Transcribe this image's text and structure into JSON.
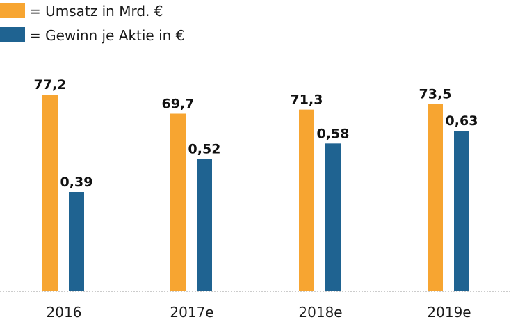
{
  "chart_data": {
    "type": "bar",
    "title": "",
    "xlabel": "",
    "ylabel": "",
    "categories": [
      "2016",
      "2017e",
      "2018e",
      "2019e"
    ],
    "series": [
      {
        "name": "= Umsatz in Mrd. €",
        "color": "#F7A531",
        "values": [
          77.2,
          69.7,
          71.3,
          73.5
        ],
        "value_labels": [
          "77,2",
          "69,7",
          "71,3",
          "73,5"
        ]
      },
      {
        "name": "= Gewinn je Aktie in €",
        "color": "#1F6391",
        "values": [
          0.39,
          0.52,
          0.58,
          0.63
        ],
        "value_labels": [
          "0,39",
          "0,52",
          "0,58",
          "0,63"
        ]
      }
    ],
    "legend_position": "top-left",
    "grid": false,
    "note": "Each series is drawn on its own hidden vertical scale"
  }
}
